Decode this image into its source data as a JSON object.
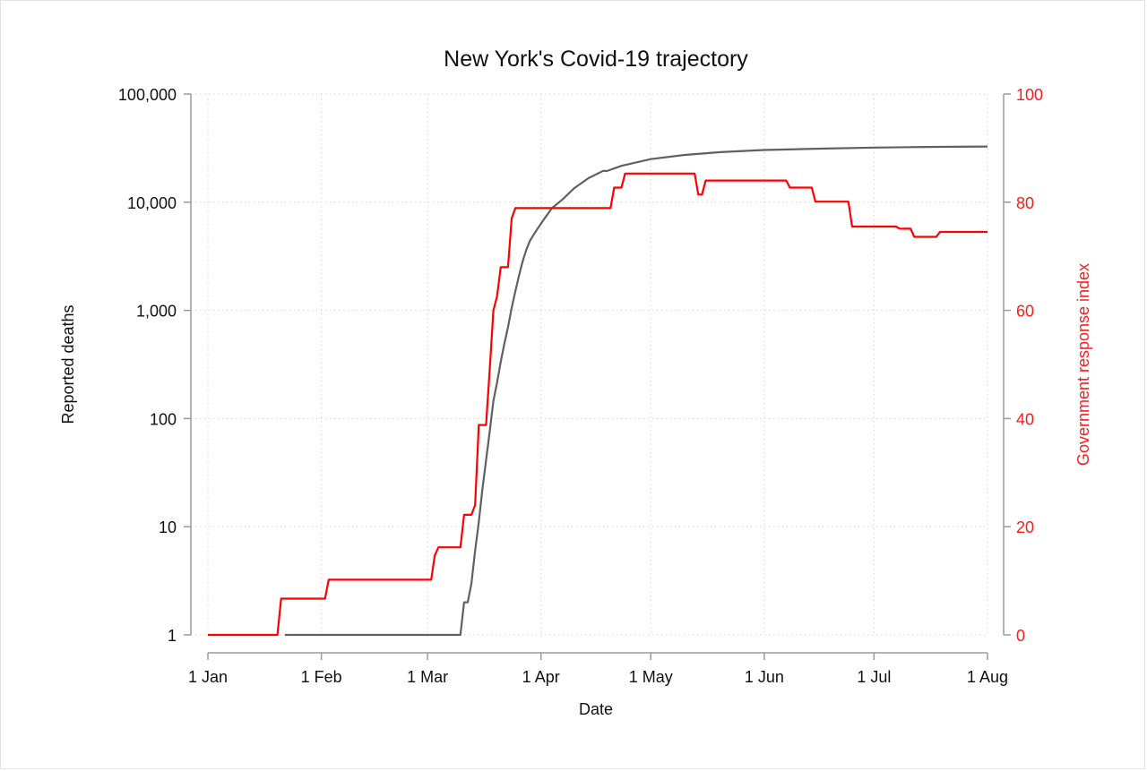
{
  "chart_data": {
    "type": "line",
    "title": "New York's Covid-19 trajectory",
    "xlabel": "Date",
    "ylabel_left": "Reported deaths",
    "ylabel_right": "Government response index",
    "x_ticks": [
      "1 Jan",
      "1 Feb",
      "1 Mar",
      "1 Apr",
      "1 May",
      "1 Jun",
      "1 Jul",
      "1 Aug"
    ],
    "y_left_ticks": [
      "1",
      "10",
      "100",
      "1,000",
      "10,000",
      "100,000"
    ],
    "y_right_ticks": [
      "0",
      "20",
      "40",
      "60",
      "80",
      "100"
    ],
    "y_left_scale": "log",
    "y_left_range": [
      1,
      100000
    ],
    "y_right_range": [
      0,
      100
    ],
    "x_range": [
      "2020-01-01",
      "2020-08-01"
    ],
    "grid": true,
    "colors": {
      "deaths": "#606060",
      "index": "#ff0000",
      "right_axis": "#ff1a1a"
    },
    "series": [
      {
        "axis": "left",
        "points": [
          [
            "2020-01-22",
            1
          ],
          [
            "2020-03-10",
            1
          ],
          [
            "2020-03-11",
            2
          ],
          [
            "2020-03-12",
            2
          ],
          [
            "2020-03-13",
            3
          ],
          [
            "2020-03-14",
            6
          ],
          [
            "2020-03-15",
            11
          ],
          [
            "2020-03-16",
            22
          ],
          [
            "2020-03-17",
            41
          ],
          [
            "2020-03-18",
            76
          ],
          [
            "2020-03-19",
            145
          ],
          [
            "2020-03-20",
            215
          ],
          [
            "2020-03-21",
            335
          ],
          [
            "2020-03-22",
            490
          ],
          [
            "2020-03-23",
            700
          ],
          [
            "2020-03-24",
            1050
          ],
          [
            "2020-03-25",
            1500
          ],
          [
            "2020-03-26",
            2100
          ],
          [
            "2020-03-27",
            2850
          ],
          [
            "2020-03-28",
            3650
          ],
          [
            "2020-03-29",
            4400
          ],
          [
            "2020-03-30",
            5000
          ],
          [
            "2020-03-31",
            5650
          ],
          [
            "2020-04-02",
            7100
          ],
          [
            "2020-04-04",
            8800
          ],
          [
            "2020-04-07",
            10700
          ],
          [
            "2020-04-10",
            13400
          ],
          [
            "2020-04-14",
            16700
          ],
          [
            "2020-04-18",
            19500
          ],
          [
            "2020-04-19",
            19400
          ],
          [
            "2020-04-23",
            21700
          ],
          [
            "2020-05-01",
            25000
          ],
          [
            "2020-05-10",
            27300
          ],
          [
            "2020-05-20",
            29000
          ],
          [
            "2020-06-01",
            30400
          ],
          [
            "2020-06-15",
            31200
          ],
          [
            "2020-07-01",
            32000
          ],
          [
            "2020-07-15",
            32400
          ],
          [
            "2020-08-01",
            32700
          ]
        ]
      },
      {
        "axis": "right",
        "points": [
          [
            "2020-01-01",
            0
          ],
          [
            "2020-01-20",
            0
          ],
          [
            "2020-01-21",
            6.7
          ],
          [
            "2020-02-02",
            6.7
          ],
          [
            "2020-02-03",
            10.2
          ],
          [
            "2020-03-02",
            10.2
          ],
          [
            "2020-03-03",
            14.7
          ],
          [
            "2020-03-04",
            16.2
          ],
          [
            "2020-03-10",
            16.2
          ],
          [
            "2020-03-11",
            22.2
          ],
          [
            "2020-03-13",
            22.2
          ],
          [
            "2020-03-14",
            24.0
          ],
          [
            "2020-03-15",
            38.8
          ],
          [
            "2020-03-17",
            38.8
          ],
          [
            "2020-03-18",
            49.0
          ],
          [
            "2020-03-19",
            60.0
          ],
          [
            "2020-03-20",
            62.6
          ],
          [
            "2020-03-21",
            68.0
          ],
          [
            "2020-03-23",
            68.0
          ],
          [
            "2020-03-24",
            77.0
          ],
          [
            "2020-03-25",
            78.9
          ],
          [
            "2020-04-20",
            78.9
          ],
          [
            "2020-04-21",
            82.7
          ],
          [
            "2020-04-23",
            82.7
          ],
          [
            "2020-04-24",
            85.3
          ],
          [
            "2020-05-13",
            85.3
          ],
          [
            "2020-05-14",
            81.4
          ],
          [
            "2020-05-15",
            81.4
          ],
          [
            "2020-05-16",
            84.0
          ],
          [
            "2020-06-07",
            84.0
          ],
          [
            "2020-06-08",
            82.7
          ],
          [
            "2020-06-14",
            82.7
          ],
          [
            "2020-06-15",
            80.1
          ],
          [
            "2020-06-24",
            80.1
          ],
          [
            "2020-06-25",
            75.5
          ],
          [
            "2020-07-07",
            75.5
          ],
          [
            "2020-07-08",
            75.1
          ],
          [
            "2020-07-11",
            75.1
          ],
          [
            "2020-07-12",
            73.6
          ],
          [
            "2020-07-18",
            73.6
          ],
          [
            "2020-07-19",
            74.5
          ],
          [
            "2020-08-01",
            74.5
          ]
        ]
      }
    ]
  }
}
